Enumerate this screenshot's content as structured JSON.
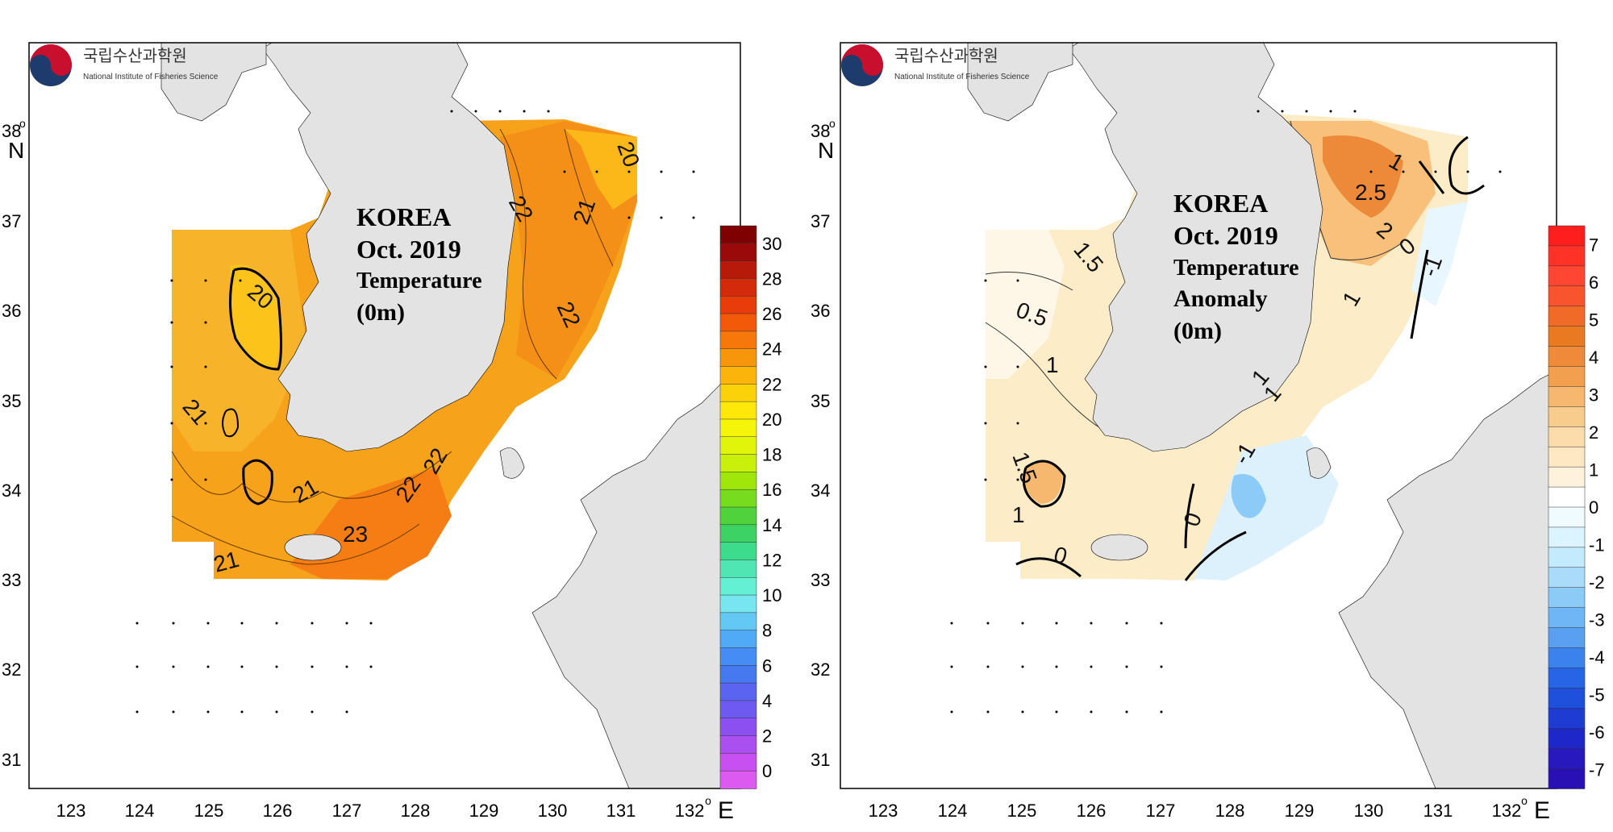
{
  "panels": [
    {
      "id": "temperature",
      "logo": {
        "korean": "국립수산과학원",
        "english": "National Institute of Fisheries Science"
      },
      "title": [
        "KOREA",
        "Oct. 2019",
        "Temperature",
        "(0m)"
      ],
      "colorbar": {
        "ticks": [
          "30",
          "28",
          "26",
          "24",
          "22",
          "20",
          "18",
          "16",
          "14",
          "12",
          "10",
          "8",
          "6",
          "4",
          "2",
          "0"
        ],
        "colors": [
          "#7f0000",
          "#9b0a0a",
          "#b81a0a",
          "#d22a0a",
          "#e83c0a",
          "#f25a0a",
          "#f7780a",
          "#f7960a",
          "#fbb40a",
          "#fbd20a",
          "#fde80a",
          "#f5f50a",
          "#e0f50a",
          "#c8f00a",
          "#a0e60a",
          "#78dc1e",
          "#50d23c",
          "#3cd264",
          "#3cdc8c",
          "#50e6b4",
          "#64f0d2",
          "#78e6f0",
          "#64c8f5",
          "#50aaf5",
          "#468cf5",
          "#4678f0",
          "#5a64f0",
          "#6e5af0",
          "#8c50f0",
          "#aa50f0",
          "#c850f0",
          "#dc5af0"
        ]
      },
      "contour_labels": [
        "20",
        "21",
        "22",
        "22",
        "22",
        "21",
        "20",
        "21",
        "21",
        "22",
        "23",
        "21",
        "0"
      ]
    },
    {
      "id": "anomaly",
      "logo": {
        "korean": "국립수산과학원",
        "english": "National Institute of Fisheries Science"
      },
      "title": [
        "KOREA",
        "Oct. 2019",
        "Temperature",
        "Anomaly",
        "(0m)"
      ],
      "colorbar": {
        "ticks": [
          "7",
          "6",
          "5",
          "4",
          "3",
          "2",
          "1",
          "0",
          "-1",
          "-2",
          "-3",
          "-4",
          "-5",
          "-6",
          "-7"
        ],
        "colors": [
          "#ff1e1e",
          "#ff3228",
          "#ff4632",
          "#f8552e",
          "#f06a28",
          "#ea7a22",
          "#ee8a3a",
          "#f2a050",
          "#f6b86e",
          "#f8cc8c",
          "#fbdcaa",
          "#fde8c3",
          "#fef2dc",
          "#ffffff",
          "#f0fbff",
          "#dcf4ff",
          "#c3eafd",
          "#aadcfa",
          "#8ccaf8",
          "#6eb6f5",
          "#5aa0f0",
          "#3c82ec",
          "#2864e6",
          "#1e50dc",
          "#1e3cd2",
          "#1e28c8",
          "#2819be",
          "#2810b4"
        ]
      },
      "contour_labels": [
        "1.5",
        "0.5",
        "1",
        "1.5",
        "1",
        "0",
        "1",
        "2.5",
        "2",
        "0",
        "-1",
        "1",
        "0",
        "-1",
        "1",
        "1"
      ]
    }
  ],
  "axes": {
    "lon_ticks": [
      "123",
      "124",
      "125",
      "126",
      "127",
      "128",
      "129",
      "130",
      "131",
      "132"
    ],
    "lat_ticks": [
      "38",
      "37",
      "36",
      "35",
      "34",
      "33",
      "32",
      "31"
    ],
    "lon_unit": "E",
    "lat_unit": "N",
    "degree": "o"
  },
  "colors": {
    "land": "#e3e3e3",
    "frame": "#000000"
  }
}
